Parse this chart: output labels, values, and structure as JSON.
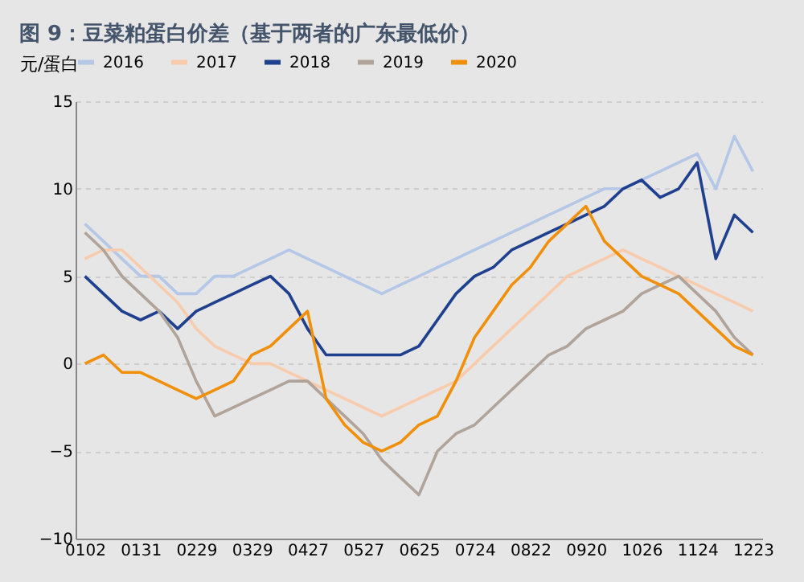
{
  "chart_data": {
    "type": "line",
    "title": "图 9：豆菜粕蛋白价差（基于两者的广东最低价）",
    "ylabel": "元/蛋白",
    "categories": [
      "0102",
      null,
      null,
      "0131",
      null,
      null,
      "0229",
      null,
      null,
      "0329",
      null,
      null,
      "0427",
      null,
      null,
      "0527",
      null,
      null,
      "0625",
      null,
      null,
      "0724",
      null,
      null,
      "0822",
      null,
      null,
      "0920",
      null,
      null,
      "1026",
      null,
      null,
      "1124",
      null,
      null,
      "1223"
    ],
    "series": [
      {
        "name": "2016",
        "color": "#b4c7e7",
        "values": [
          8,
          7,
          6,
          5,
          5,
          4,
          4,
          5,
          5,
          5.5,
          6,
          6.5,
          6,
          5.5,
          5,
          4.5,
          4,
          4.5,
          5,
          5.5,
          6,
          6.5,
          7,
          7.5,
          8,
          8.5,
          9,
          9.5,
          10,
          10,
          10.5,
          11,
          11.5,
          12,
          10,
          13,
          11
        ]
      },
      {
        "name": "2017",
        "color": "#f8cbad",
        "values": [
          6,
          6.5,
          6.5,
          5.5,
          4.5,
          3.5,
          2,
          1,
          0.5,
          0,
          0,
          -0.5,
          -1,
          -1.5,
          -2,
          -2.5,
          -3,
          -2.5,
          -2,
          -1.5,
          -1,
          0,
          1,
          2,
          3,
          4,
          5,
          5.5,
          6,
          6.5,
          6,
          5.5,
          5,
          4.5,
          4,
          3.5,
          3
        ]
      },
      {
        "name": "2018",
        "color": "#1f3f8f",
        "values": [
          5,
          4,
          3,
          2.5,
          3,
          2,
          3,
          3.5,
          4,
          4.5,
          5,
          4,
          2,
          0.5,
          0.5,
          0.5,
          0.5,
          0.5,
          1,
          2.5,
          4,
          5,
          5.5,
          6.5,
          7,
          7.5,
          8,
          8.5,
          9,
          10,
          10.5,
          9.5,
          10,
          11.5,
          6,
          8.5,
          7.5
        ]
      },
      {
        "name": "2019",
        "color": "#b0a49a",
        "values": [
          7.5,
          6.5,
          5,
          4,
          3,
          1.5,
          -1,
          -3,
          -2.5,
          -2,
          -1.5,
          -1,
          -1,
          -2,
          -3,
          -4,
          -5.5,
          -6.5,
          -7.5,
          -5,
          -4,
          -3.5,
          -2.5,
          -1.5,
          -0.5,
          0.5,
          1,
          2,
          2.5,
          3,
          4,
          4.5,
          5,
          4,
          3,
          1.5,
          0.5
        ]
      },
      {
        "name": "2020",
        "color": "#f0900a",
        "values": [
          0,
          0.5,
          -0.5,
          -0.5,
          -1,
          -1.5,
          -2,
          -1.5,
          -1,
          0.5,
          1,
          2,
          3,
          -2,
          -3.5,
          -4.5,
          -5,
          -4.5,
          -3.5,
          -3,
          -1,
          1.5,
          3,
          4.5,
          5.5,
          7,
          8,
          9,
          7,
          6,
          5,
          4.5,
          4,
          3,
          2,
          1,
          0.5
        ]
      }
    ],
    "ylim": [
      -10,
      15
    ],
    "yticks": [
      -10,
      -5,
      0,
      5,
      10,
      15
    ],
    "grid": "y",
    "legend": "top"
  }
}
